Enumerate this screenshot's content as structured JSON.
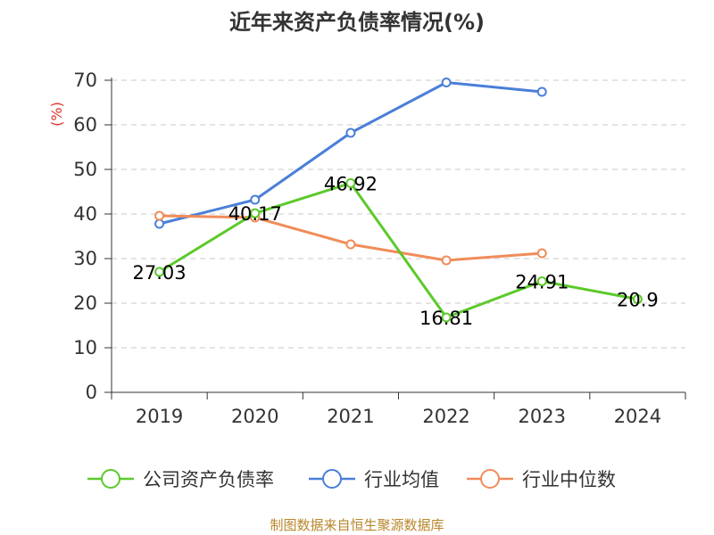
{
  "chart_data": {
    "type": "line",
    "title": "近年来资产负债率情况(%)",
    "ylabel": "(%)",
    "categories": [
      "2019",
      "2020",
      "2021",
      "2022",
      "2023",
      "2024"
    ],
    "ylim": [
      0,
      70
    ],
    "yticks": [
      0,
      10,
      20,
      30,
      40,
      50,
      60,
      70
    ],
    "grid": true,
    "legend_position": "bottom",
    "series": [
      {
        "name": "公司资产负债率",
        "color": "#5cc92b",
        "values": [
          27.03,
          40.17,
          46.92,
          16.81,
          24.91,
          20.9
        ],
        "labels": [
          "27.03",
          "40.17",
          "46.92",
          "16.81",
          "24.91",
          "20.9"
        ]
      },
      {
        "name": "行业均值",
        "color": "#4a7fd8",
        "values": [
          37.8,
          43.2,
          58.2,
          69.5,
          67.4,
          null
        ]
      },
      {
        "name": "行业中位数",
        "color": "#f08c5a",
        "values": [
          39.6,
          39.2,
          33.2,
          29.6,
          31.2,
          null
        ]
      }
    ]
  },
  "source": "制图数据来自恒生聚源数据库"
}
